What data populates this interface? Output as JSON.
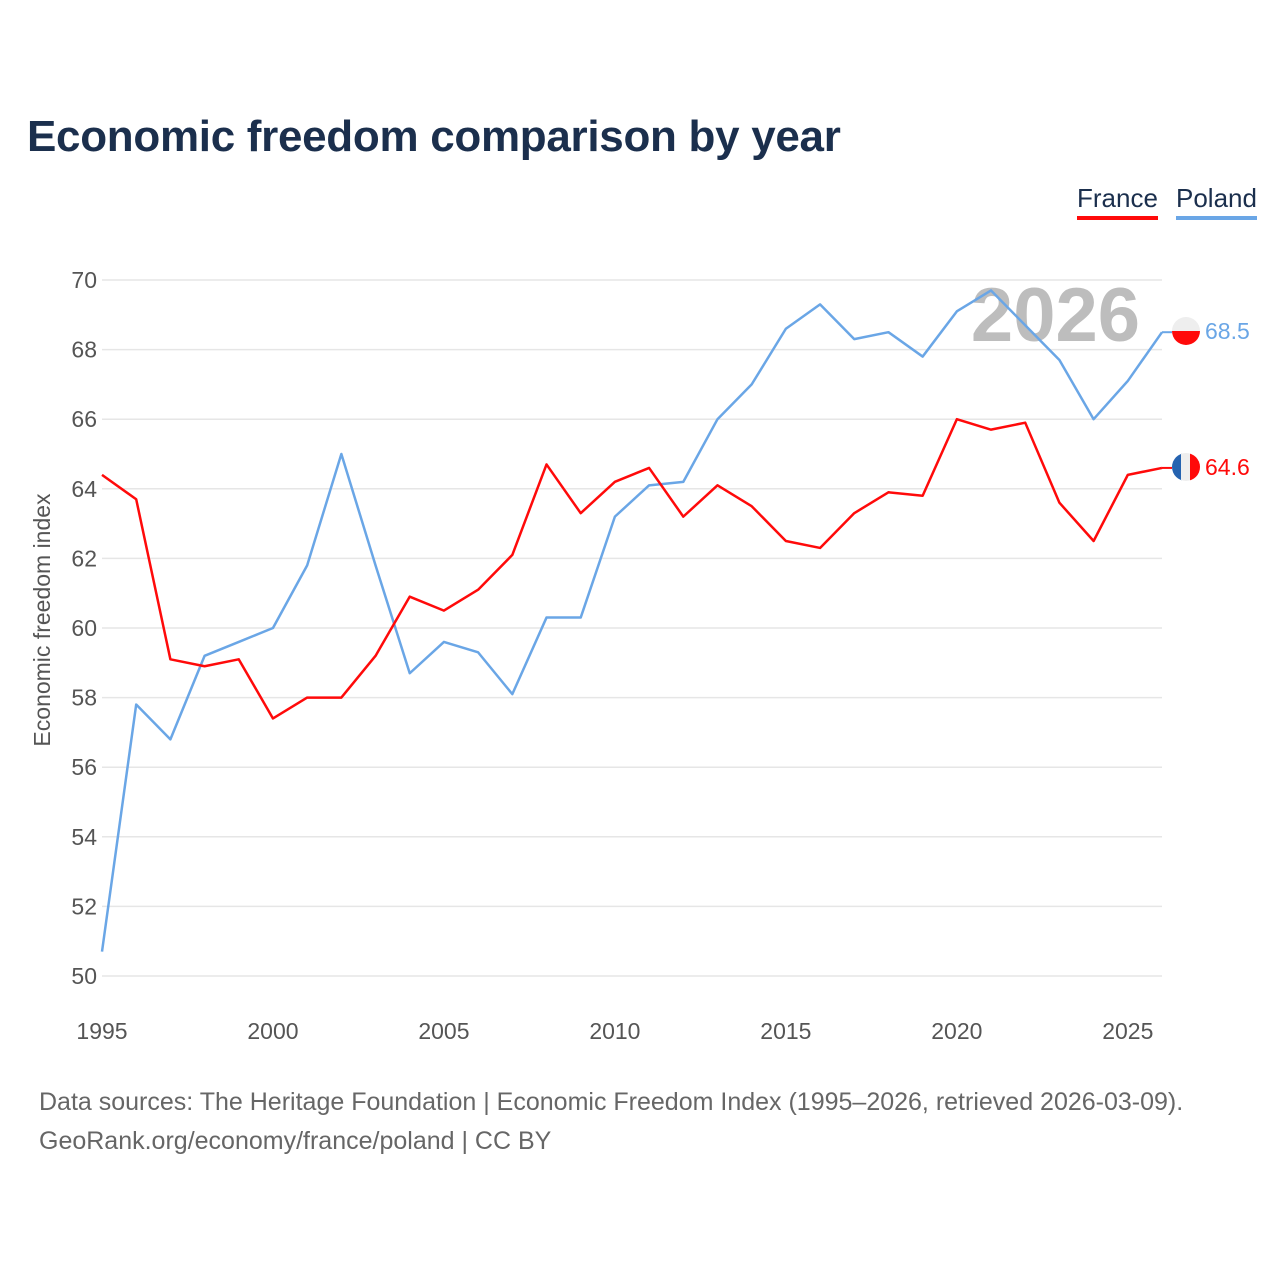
{
  "title": "Economic freedom comparison by year",
  "chart_data": {
    "type": "line",
    "title": "Economic freedom comparison by year",
    "xlabel": "",
    "ylabel": "Economic freedom index",
    "xlim": [
      1995,
      2026
    ],
    "ylim": [
      50,
      70
    ],
    "x_ticks": [
      "1995",
      "2000",
      "2005",
      "2010",
      "2015",
      "2020",
      "2025"
    ],
    "y_ticks": [
      "50",
      "52",
      "54",
      "56",
      "58",
      "60",
      "62",
      "64",
      "66",
      "68",
      "70"
    ],
    "grid": true,
    "legend_placement": "top-right",
    "watermark_year": "2026",
    "x": [
      1995,
      1996,
      1997,
      1998,
      1999,
      2000,
      2001,
      2002,
      2003,
      2004,
      2005,
      2006,
      2007,
      2008,
      2009,
      2010,
      2011,
      2012,
      2013,
      2014,
      2015,
      2016,
      2017,
      2018,
      2019,
      2020,
      2021,
      2022,
      2023,
      2024,
      2025,
      2026
    ],
    "series": [
      {
        "name": "France",
        "color": "#ff0a0a",
        "end_label": "64.6",
        "flag": "france",
        "values": [
          64.4,
          63.7,
          59.1,
          58.9,
          59.1,
          57.4,
          58.0,
          58.0,
          59.2,
          60.9,
          60.5,
          61.1,
          62.1,
          64.7,
          63.3,
          64.2,
          64.6,
          63.2,
          64.1,
          63.5,
          62.5,
          62.3,
          63.3,
          63.9,
          63.8,
          66.0,
          65.7,
          65.9,
          63.6,
          62.5,
          64.4,
          64.6
        ]
      },
      {
        "name": "Poland",
        "color": "#6aa6e6",
        "end_label": "68.5",
        "flag": "poland",
        "values": [
          50.7,
          57.8,
          56.8,
          59.2,
          59.6,
          60.0,
          61.8,
          65.0,
          61.8,
          58.7,
          59.6,
          59.3,
          58.1,
          60.3,
          60.3,
          63.2,
          64.1,
          64.2,
          66.0,
          67.0,
          68.6,
          69.3,
          68.3,
          68.5,
          67.8,
          69.1,
          69.7,
          68.7,
          67.7,
          66.0,
          67.1,
          68.5
        ]
      }
    ]
  },
  "footer": {
    "line1": "Data sources: The Heritage Foundation | Economic Freedom Index (1995–2026, retrieved 2026-03-09).",
    "line2": "GeoRank.org/economy/france/poland | CC BY"
  }
}
